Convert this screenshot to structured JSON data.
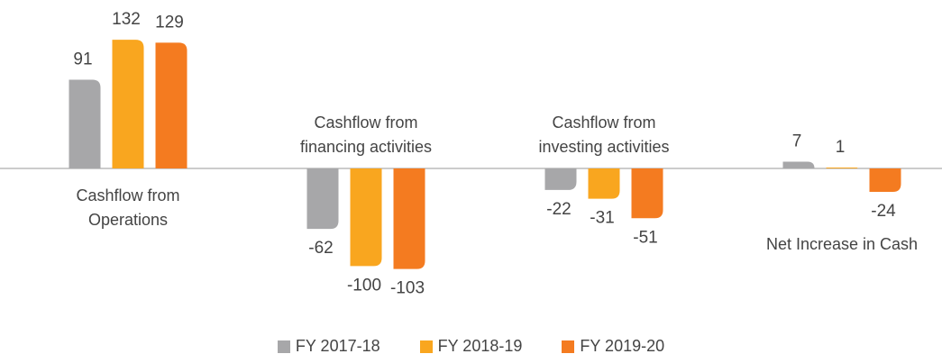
{
  "chart_data": {
    "type": "bar",
    "categories": [
      "Cashflow from Operations",
      "Cashflow from financing activities",
      "Cashflow from investing activities",
      "Net Increase in Cash"
    ],
    "series": [
      {
        "name": "FY 2017-18",
        "color": "#a7a7a9",
        "values": [
          91,
          -62,
          -22,
          7
        ]
      },
      {
        "name": "FY 2018-19",
        "color": "#f9a61f",
        "values": [
          132,
          -100,
          -31,
          1
        ]
      },
      {
        "name": "FY 2019-20",
        "color": "#f47b20",
        "values": [
          129,
          -103,
          -51,
          -24
        ]
      }
    ],
    "ylim": [
      -120,
      140
    ]
  }
}
